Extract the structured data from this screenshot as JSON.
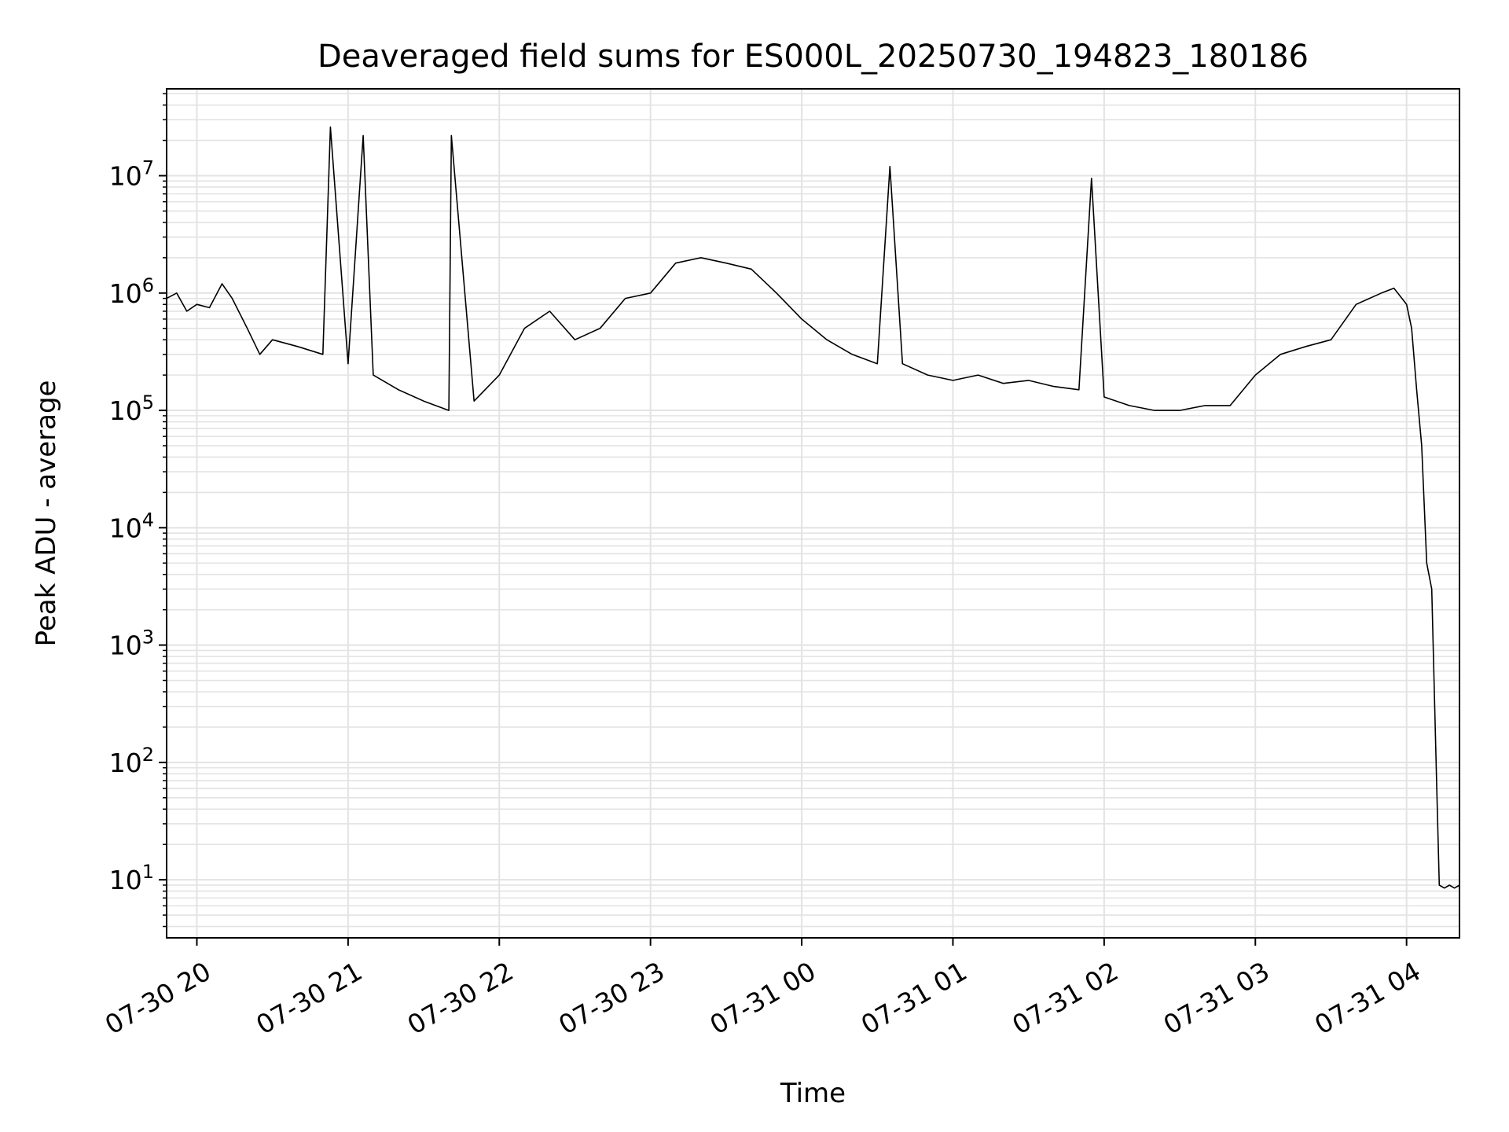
{
  "chart_data": {
    "type": "line",
    "title": "Deaveraged field sums for ES000L_20250730_194823_180186",
    "xlabel": "Time",
    "ylabel": "Peak ADU - average",
    "y_scale": "log",
    "ylim": [
      3.2,
      55000000
    ],
    "xlim": [
      "2025-07-30 19:48",
      "2025-07-31 04:21"
    ],
    "grid": true,
    "x_ticks": [
      "07-30 20",
      "07-30 21",
      "07-30 22",
      "07-30 23",
      "07-31 00",
      "07-31 01",
      "07-31 02",
      "07-31 03",
      "07-31 04"
    ],
    "y_ticks": [
      "10^1",
      "10^2",
      "10^3",
      "10^4",
      "10^5",
      "10^6",
      "10^7"
    ],
    "colors": {
      "line": "#000000",
      "grid": "#e3e3e3"
    },
    "series": [
      {
        "x": [
          "2025-07-30 19:48",
          "2025-07-30 19:52",
          "2025-07-30 19:56",
          "2025-07-30 20:00",
          "2025-07-30 20:05",
          "2025-07-30 20:10",
          "2025-07-30 20:14",
          "2025-07-30 20:20",
          "2025-07-30 20:25",
          "2025-07-30 20:30",
          "2025-07-30 20:40",
          "2025-07-30 20:50",
          "2025-07-30 20:53",
          "2025-07-30 21:00",
          "2025-07-30 21:06",
          "2025-07-30 21:10",
          "2025-07-30 21:20",
          "2025-07-30 21:30",
          "2025-07-30 21:40",
          "2025-07-30 21:41",
          "2025-07-30 21:50",
          "2025-07-30 22:00",
          "2025-07-30 22:10",
          "2025-07-30 22:20",
          "2025-07-30 22:30",
          "2025-07-30 22:40",
          "2025-07-30 22:50",
          "2025-07-30 23:00",
          "2025-07-30 23:10",
          "2025-07-30 23:20",
          "2025-07-30 23:30",
          "2025-07-30 23:40",
          "2025-07-30 23:50",
          "2025-07-31 00:00",
          "2025-07-31 00:10",
          "2025-07-31 00:20",
          "2025-07-31 00:30",
          "2025-07-31 00:35",
          "2025-07-31 00:40",
          "2025-07-31 00:50",
          "2025-07-31 01:00",
          "2025-07-31 01:10",
          "2025-07-31 01:20",
          "2025-07-31 01:30",
          "2025-07-31 01:40",
          "2025-07-31 01:50",
          "2025-07-31 01:55",
          "2025-07-31 02:00",
          "2025-07-31 02:10",
          "2025-07-31 02:20",
          "2025-07-31 02:30",
          "2025-07-31 02:40",
          "2025-07-31 02:50",
          "2025-07-31 03:00",
          "2025-07-31 03:10",
          "2025-07-31 03:20",
          "2025-07-31 03:30",
          "2025-07-31 03:40",
          "2025-07-31 03:50",
          "2025-07-31 03:55",
          "2025-07-31 04:00",
          "2025-07-31 04:02",
          "2025-07-31 04:04",
          "2025-07-31 04:06",
          "2025-07-31 04:08",
          "2025-07-31 04:10",
          "2025-07-31 04:12",
          "2025-07-31 04:13",
          "2025-07-31 04:15",
          "2025-07-31 04:17",
          "2025-07-31 04:19",
          "2025-07-31 04:21"
        ],
        "y": [
          900000,
          1000000,
          700000,
          800000,
          750000,
          1200000,
          900000,
          500000,
          300000,
          400000,
          350000,
          300000,
          26000000,
          250000,
          22000000,
          200000,
          150000,
          120000,
          100000,
          22000000,
          120000,
          200000,
          500000,
          700000,
          400000,
          500000,
          900000,
          1000000,
          1800000,
          2000000,
          1800000,
          1600000,
          1000000,
          600000,
          400000,
          300000,
          250000,
          12000000,
          250000,
          200000,
          180000,
          200000,
          170000,
          180000,
          160000,
          150000,
          9500000,
          130000,
          110000,
          100000,
          100000,
          110000,
          110000,
          200000,
          300000,
          350000,
          400000,
          800000,
          1000000,
          1100000,
          800000,
          500000,
          150000,
          50000,
          5000,
          3000,
          60,
          9,
          8.5,
          9,
          8.5,
          9
        ]
      }
    ]
  }
}
